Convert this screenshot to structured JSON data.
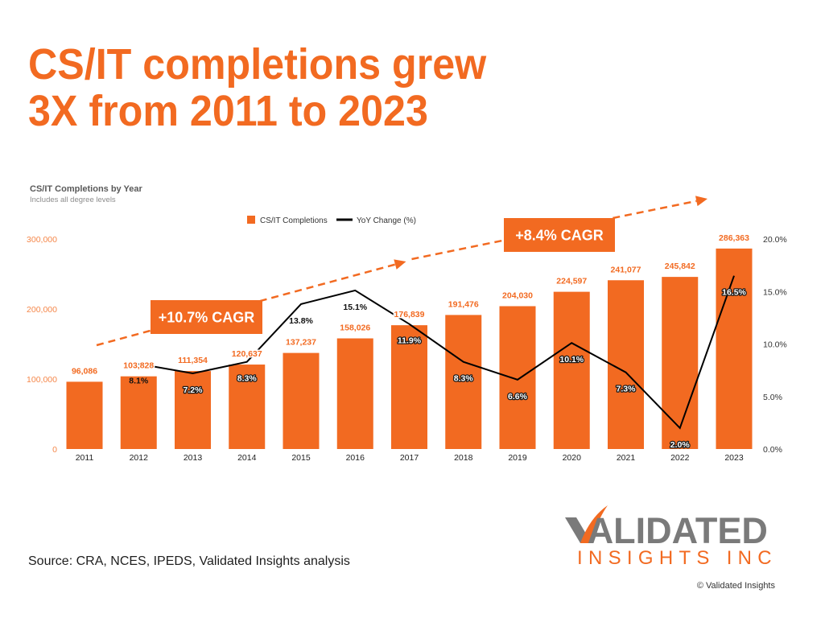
{
  "page": {
    "title_lines": [
      "CS/IT completions grew",
      "3X from 2011 to 2023"
    ],
    "source": "Source: CRA, NCES, IPEDS, Validated Insights analysis",
    "copyright": "© Validated Insights"
  },
  "logo": {
    "word1": "VALIDATED",
    "word2": "INSIGHTS INC",
    "gray": "#7A7A7A",
    "accent": "#F26A21"
  },
  "colors": {
    "accent": "#F26A21",
    "bar_label": "#F26A21",
    "axis_text": "#333333"
  },
  "chart_data": {
    "type": "bar+line",
    "title": "CS/IT Completions by Year",
    "subtitle": "Includes all degree levels",
    "categories": [
      "2011",
      "2012",
      "2013",
      "2014",
      "2015",
      "2016",
      "2017",
      "2018",
      "2019",
      "2020",
      "2021",
      "2022",
      "2023"
    ],
    "series": [
      {
        "name": "CS/IT Completions",
        "type": "bar",
        "axis": "left",
        "color": "#F26A21",
        "values": [
          96086,
          103828,
          111354,
          120637,
          137237,
          158026,
          176839,
          191476,
          204030,
          224597,
          241077,
          245842,
          286363
        ],
        "labels": [
          "96,086",
          "103,828",
          "111,354",
          "120,637",
          "137,237",
          "158,026",
          "176,839",
          "191,476",
          "204,030",
          "224,597",
          "241,077",
          "245,842",
          "286,363"
        ]
      },
      {
        "name": "YoY Change (%)",
        "type": "line",
        "axis": "right",
        "color": "#000000",
        "values": [
          null,
          8.1,
          7.2,
          8.3,
          13.8,
          15.1,
          11.9,
          8.3,
          6.6,
          10.1,
          7.3,
          2.0,
          16.5
        ],
        "labels": [
          null,
          "8.1%",
          "7.2%",
          "8.3%",
          "13.8%",
          "15.1%",
          "11.9%",
          "8.3%",
          "6.6%",
          "10.1%",
          "7.3%",
          "2.0%",
          "16.5%"
        ]
      }
    ],
    "y_left": {
      "range": [
        0,
        300000
      ],
      "ticks": [
        0,
        100000,
        200000,
        300000
      ],
      "tick_labels": [
        "0",
        "100,000",
        "200,000",
        "300,000"
      ],
      "color": "#F5874A"
    },
    "y_right": {
      "range": [
        0,
        20
      ],
      "ticks": [
        0,
        5,
        10,
        15,
        20
      ],
      "tick_labels": [
        "0.0%",
        "5.0%",
        "10.0%",
        "15.0%",
        "20.0%"
      ],
      "color": "#333333"
    },
    "xlabel": "",
    "ylabel": "",
    "grid": false,
    "legend": {
      "position": "top",
      "entries": [
        {
          "label": "CS/IT Completions",
          "marker": "square",
          "color": "#F26A21"
        },
        {
          "label": "YoY Change (%)",
          "marker": "line",
          "color": "#000000"
        }
      ]
    },
    "annotations": [
      {
        "text": "+10.7% CAGR",
        "type": "dashed-arrow",
        "span": [
          "2011",
          "2017"
        ],
        "color": "#F26A21"
      },
      {
        "text": "+8.4% CAGR",
        "type": "dashed-arrow",
        "span": [
          "2017",
          "2023"
        ],
        "color": "#F26A21"
      }
    ]
  }
}
